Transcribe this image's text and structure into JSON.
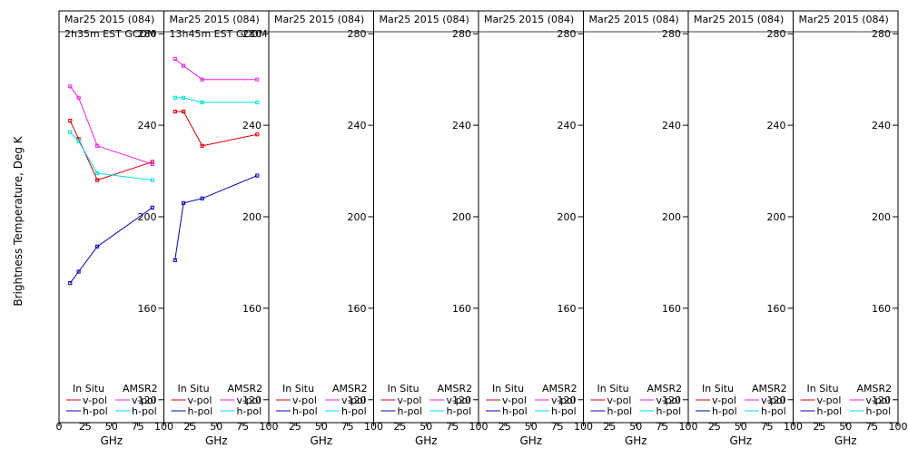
{
  "ylabel": "Brightness Temperature, Deg K",
  "xlabel": "GHz",
  "legend": {
    "insitu_label": "In Situ",
    "amsr2_label": "AMSR2",
    "vpol": "v-pol",
    "hpol": "h-pol"
  },
  "colors": {
    "insitu_v": "#e00000",
    "insitu_h": "#0000c0",
    "amsr2_v": "#ee20ee",
    "amsr2_h": "#00e0e0",
    "axis": "#000000",
    "panel_bg": "#ffffff"
  },
  "chart_data": [
    {
      "type": "line",
      "title": "Mar25 2015 (084)",
      "subtitle": "2h35m EST GCOM",
      "xlim": [
        0,
        100
      ],
      "ylim": [
        110,
        290
      ],
      "xticks": [
        0,
        25,
        50,
        75,
        100
      ],
      "yticks": [
        120,
        160,
        200,
        240,
        280
      ],
      "series": [
        {
          "name": "In Situ v-pol",
          "color_key": "insitu_v",
          "x": [
            10.6,
            18.7,
            36.5,
            89
          ],
          "y": [
            242,
            234,
            216,
            224
          ]
        },
        {
          "name": "In Situ h-pol",
          "color_key": "insitu_h",
          "x": [
            10.6,
            18.7,
            36.5,
            89
          ],
          "y": [
            171,
            176,
            187,
            204
          ]
        },
        {
          "name": "AMSR2 v-pol",
          "color_key": "amsr2_v",
          "x": [
            10.6,
            18.7,
            36.5,
            89
          ],
          "y": [
            257,
            252,
            231,
            223
          ]
        },
        {
          "name": "AMSR2 h-pol",
          "color_key": "amsr2_h",
          "x": [
            10.6,
            18.7,
            36.5,
            89
          ],
          "y": [
            237,
            233,
            219,
            216
          ]
        }
      ]
    },
    {
      "type": "line",
      "title": "Mar25 2015 (084)",
      "subtitle": "13h45m EST GCOM",
      "xlim": [
        0,
        100
      ],
      "ylim": [
        110,
        290
      ],
      "xticks": [
        0,
        25,
        50,
        75,
        100
      ],
      "yticks": [
        120,
        160,
        200,
        240,
        280
      ],
      "series": [
        {
          "name": "In Situ v-pol",
          "color_key": "insitu_v",
          "x": [
            10.6,
            18.7,
            36.5,
            89
          ],
          "y": [
            246,
            246,
            231,
            236
          ]
        },
        {
          "name": "In Situ h-pol",
          "color_key": "insitu_h",
          "x": [
            10.6,
            18.7,
            36.5,
            89
          ],
          "y": [
            181,
            206,
            208,
            218
          ]
        },
        {
          "name": "AMSR2 v-pol",
          "color_key": "amsr2_v",
          "x": [
            10.6,
            18.7,
            36.5,
            89
          ],
          "y": [
            269,
            266,
            260,
            260
          ]
        },
        {
          "name": "AMSR2 h-pol",
          "color_key": "amsr2_h",
          "x": [
            10.6,
            18.7,
            36.5,
            89
          ],
          "y": [
            252,
            252,
            250,
            250
          ]
        }
      ]
    },
    {
      "type": "line",
      "title": "Mar25 2015 (084)",
      "subtitle": "",
      "xlim": [
        0,
        100
      ],
      "ylim": [
        110,
        290
      ],
      "xticks": [
        0,
        25,
        50,
        75,
        100
      ],
      "yticks": [
        120,
        160,
        200,
        240,
        280
      ],
      "series": []
    },
    {
      "type": "line",
      "title": "Mar25 2015 (084)",
      "subtitle": "",
      "xlim": [
        0,
        100
      ],
      "ylim": [
        110,
        290
      ],
      "xticks": [
        0,
        25,
        50,
        75,
        100
      ],
      "yticks": [
        120,
        160,
        200,
        240,
        280
      ],
      "series": []
    },
    {
      "type": "line",
      "title": "Mar25 2015 (084)",
      "subtitle": "",
      "xlim": [
        0,
        100
      ],
      "ylim": [
        110,
        290
      ],
      "xticks": [
        0,
        25,
        50,
        75,
        100
      ],
      "yticks": [
        120,
        160,
        200,
        240,
        280
      ],
      "series": []
    },
    {
      "type": "line",
      "title": "Mar25 2015 (084)",
      "subtitle": "",
      "xlim": [
        0,
        100
      ],
      "ylim": [
        110,
        290
      ],
      "xticks": [
        0,
        25,
        50,
        75,
        100
      ],
      "yticks": [
        120,
        160,
        200,
        240,
        280
      ],
      "series": []
    },
    {
      "type": "line",
      "title": "Mar25 2015 (084)",
      "subtitle": "",
      "xlim": [
        0,
        100
      ],
      "ylim": [
        110,
        290
      ],
      "xticks": [
        0,
        25,
        50,
        75,
        100
      ],
      "yticks": [
        120,
        160,
        200,
        240,
        280
      ],
      "series": []
    },
    {
      "type": "line",
      "title": "Mar25 2015 (084)",
      "subtitle": "",
      "xlim": [
        0,
        100
      ],
      "ylim": [
        110,
        290
      ],
      "xticks": [
        0,
        25,
        50,
        75,
        100
      ],
      "yticks": [
        120,
        160,
        200,
        240,
        280
      ],
      "series": []
    }
  ]
}
